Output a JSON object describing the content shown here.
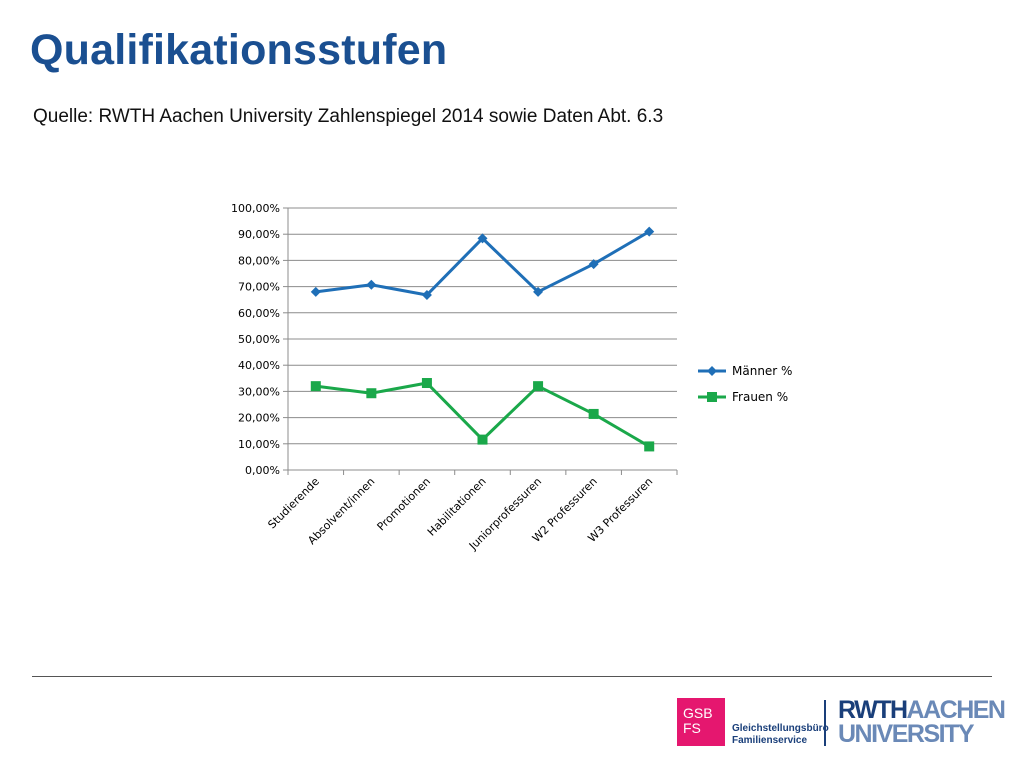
{
  "slide": {
    "title": "Qualifikationsstufen",
    "subtitle": "Quelle: RWTH Aachen University Zahlenspiegel 2014 sowie Daten Abt. 6.3"
  },
  "chart_data": {
    "type": "line",
    "categories": [
      "Studierende",
      "Absolvent/innen",
      "Promotionen",
      "Habilitationen",
      "Juniorprofessuren",
      "W2 Professuren",
      "W3 Professuren"
    ],
    "series": [
      {
        "name": "Männer %",
        "color": "#1f6fb7",
        "marker": "diamond",
        "values": [
          68.0,
          70.7,
          66.8,
          88.4,
          68.0,
          78.6,
          91.0
        ]
      },
      {
        "name": "Frauen %",
        "color": "#1aa84a",
        "marker": "square",
        "values": [
          32.0,
          29.3,
          33.2,
          11.6,
          32.0,
          21.4,
          9.0
        ]
      }
    ],
    "y_ticks": [
      "0,00%",
      "10,00%",
      "20,00%",
      "30,00%",
      "40,00%",
      "50,00%",
      "60,00%",
      "70,00%",
      "80,00%",
      "90,00%",
      "100,00%"
    ],
    "ylim": [
      0,
      100
    ],
    "grid": true,
    "legend_position": "right"
  },
  "footer": {
    "gsb_logo": [
      "GSB",
      "FS"
    ],
    "gsb_name": [
      "Gleichstellungsbüro",
      "Familienservice"
    ],
    "rwth_logo": {
      "bold": "RWTH",
      "light": "AACHEN",
      "line2": "UNIVERSITY"
    }
  }
}
